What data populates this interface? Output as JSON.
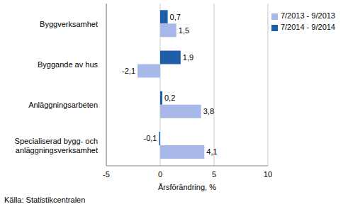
{
  "chart_data": {
    "type": "bar",
    "orientation": "horizontal",
    "categories": [
      "Byggverksamhet",
      "Byggande av hus",
      "Anläggningsarbeten",
      "Specialiserad bygg- och anläggningsverksamhet"
    ],
    "series": [
      {
        "name": "7/2014 - 9/2014",
        "color": "#1f5ea8",
        "values": [
          0.7,
          1.9,
          0.2,
          -0.1
        ],
        "value_labels": [
          "0,7",
          "1,9",
          "0,2",
          "-0,1"
        ]
      },
      {
        "name": "7/2013 - 9/2013",
        "color": "#a8b8e8",
        "values": [
          1.5,
          -2.1,
          3.8,
          4.1
        ],
        "value_labels": [
          "1,5",
          "-2,1",
          "3,8",
          "4,1"
        ]
      }
    ],
    "x_label": "Årsförändring, %",
    "source": "Källa: Statistikcentralen",
    "xlim": [
      -5,
      10
    ],
    "xticks": [
      -5,
      0,
      5,
      10
    ],
    "grid": true,
    "legend": "top right",
    "data_labels": true
  }
}
